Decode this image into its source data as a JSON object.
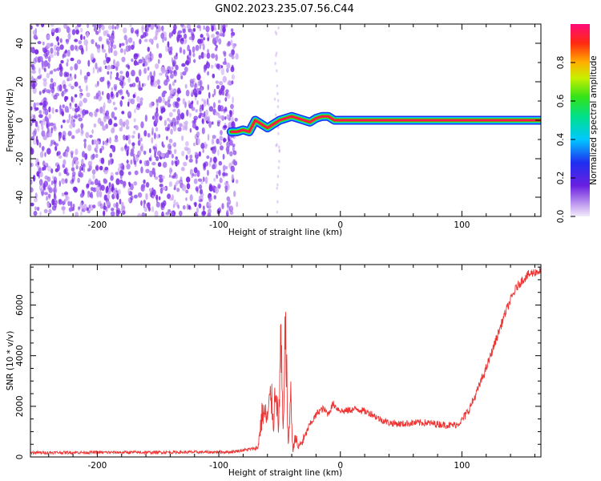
{
  "title": "GN02.2023.235.07.56.C44",
  "colors": {
    "snr_line": "#ee3333",
    "scatter": "#7a2be6",
    "scatter_light": "#c9a4f2",
    "axis": "#000000"
  },
  "chart_data": [
    {
      "type": "heatmap",
      "title": "GN02.2023.235.07.56.C44",
      "xlabel": "Height of straight line (km)",
      "ylabel": "Frequency (Hz)",
      "xlim": [
        -255,
        165
      ],
      "ylim": [
        -50,
        50
      ],
      "xticks": [
        -200,
        -100,
        0,
        100
      ],
      "yticks": [
        -40,
        -20,
        0,
        20,
        40
      ],
      "xtick_labels": [
        "-200",
        "-100",
        "0",
        "100"
      ],
      "ytick_labels": [
        "-40",
        "-20",
        "0",
        "20",
        "40"
      ],
      "colorbar": {
        "label": "Normalized spectral amplitude",
        "ticks": [
          0.0,
          0.2,
          0.4,
          0.6,
          0.8
        ],
        "tick_labels": [
          "0.0",
          "0.2",
          "0.4",
          "0.6",
          "0.8"
        ],
        "range": [
          0,
          1
        ],
        "colormap": "rainbow (purple → blue → cyan → green → yellow → orange → red → magenta)"
      },
      "noise_region": {
        "x_range": [
          -255,
          -85
        ],
        "y_range": [
          -50,
          50
        ]
      },
      "signal_track": {
        "x": [
          -90,
          -85,
          -80,
          -75,
          -70,
          -65,
          -60,
          -55,
          -50,
          -45,
          -40,
          -35,
          -30,
          -25,
          -20,
          -15,
          -10,
          -5,
          0,
          50,
          100,
          165
        ],
        "y": [
          -6,
          -6,
          -5,
          -6,
          0,
          -2,
          -4,
          -2,
          0,
          1,
          2,
          1,
          0,
          -1,
          1,
          2,
          2,
          0,
          0,
          0,
          0,
          0
        ]
      }
    },
    {
      "type": "line",
      "xlabel": "Height of straight line (km)",
      "ylabel": "SNR (10 * v/v)",
      "xlim": [
        -255,
        165
      ],
      "ylim": [
        0,
        7600
      ],
      "xticks": [
        -200,
        -100,
        0,
        100
      ],
      "yticks": [
        0,
        2000,
        4000,
        6000
      ],
      "xtick_labels": [
        "-200",
        "-100",
        "0",
        "100"
      ],
      "ytick_labels": [
        "0",
        "2000",
        "4000",
        "6000"
      ],
      "series": [
        {
          "x": [
            -255,
            -230,
            -200,
            -170,
            -140,
            -110,
            -90,
            -68,
            -64,
            -60,
            -57,
            -55,
            -53,
            -51,
            -49,
            -47,
            -45,
            -43,
            -41,
            -39,
            -37,
            -35,
            -33,
            -30,
            -26,
            -22,
            -18,
            -14,
            -10,
            -6,
            -2,
            2,
            8,
            14,
            20,
            26,
            32,
            40,
            50,
            60,
            70,
            80,
            90,
            96,
            100,
            105,
            110,
            115,
            120,
            125,
            130,
            135,
            140,
            145,
            150,
            155,
            160,
            165
          ],
          "y": [
            170,
            175,
            180,
            180,
            185,
            190,
            200,
            350,
            1800,
            1500,
            2500,
            1300,
            3200,
            900,
            4700,
            700,
            5600,
            300,
            2500,
            200,
            900,
            350,
            500,
            700,
            1200,
            1500,
            1800,
            1900,
            1700,
            2100,
            1900,
            1800,
            1850,
            1900,
            1800,
            1700,
            1500,
            1350,
            1300,
            1350,
            1350,
            1300,
            1250,
            1280,
            1450,
            1800,
            2300,
            2900,
            3500,
            4200,
            4900,
            5600,
            6200,
            6700,
            7000,
            7200,
            7300,
            7350
          ]
        }
      ]
    }
  ]
}
